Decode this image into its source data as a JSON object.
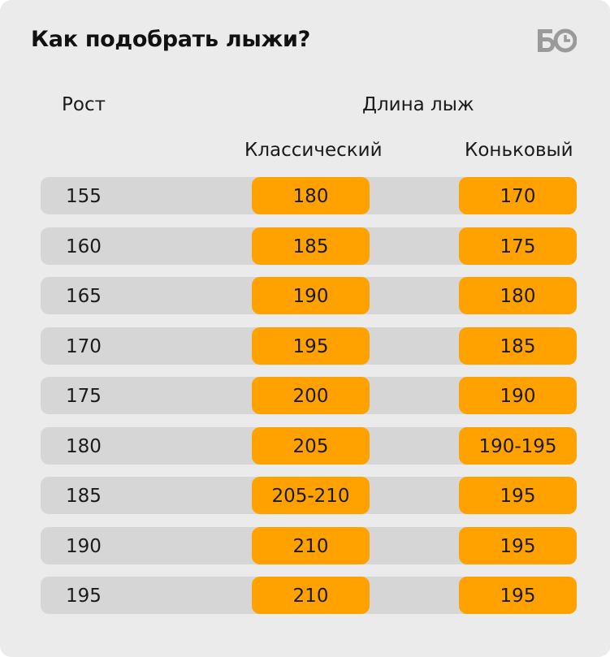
{
  "title": "Как подобрать лыжи?",
  "logo": {
    "name": "bo-logo",
    "text": "БО"
  },
  "headers": {
    "height": "Рост",
    "length": "Длина лыж",
    "classic": "Классический",
    "skate": "Коньковый"
  },
  "rows": [
    {
      "height": "155",
      "classic": "180",
      "skate": "170"
    },
    {
      "height": "160",
      "classic": "185",
      "skate": "175"
    },
    {
      "height": "165",
      "classic": "190",
      "skate": "180"
    },
    {
      "height": "170",
      "classic": "195",
      "skate": "185"
    },
    {
      "height": "175",
      "classic": "200",
      "skate": "190"
    },
    {
      "height": "180",
      "classic": "205",
      "skate": "190-195"
    },
    {
      "height": "185",
      "classic": "205-210",
      "skate": "195"
    },
    {
      "height": "190",
      "classic": "210",
      "skate": "195"
    },
    {
      "height": "195",
      "classic": "210",
      "skate": "195"
    }
  ],
  "colors": {
    "background": "#ebebeb",
    "row": "#d6d6d6",
    "accent": "#ffa200",
    "logo": "#9a9a9a"
  }
}
